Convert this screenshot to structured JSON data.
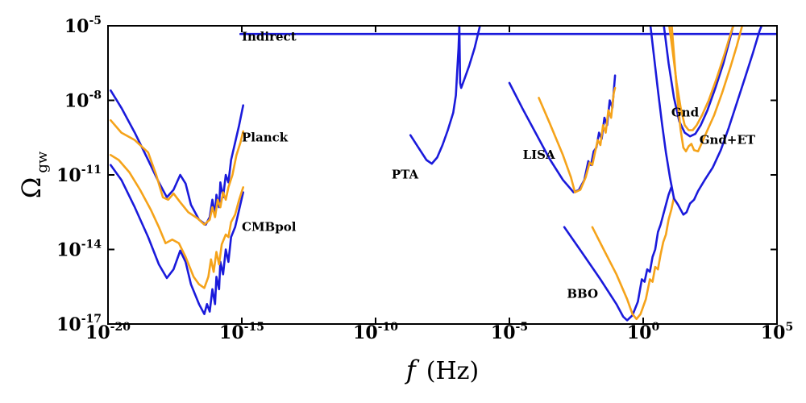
{
  "chart_data": {
    "type": "line",
    "xscale": "log",
    "yscale": "log",
    "xlim": [
      "1e-20",
      "1e5"
    ],
    "ylim": [
      "1e-17",
      "1e-5"
    ],
    "xlabel": {
      "main": "f",
      "unit": "(Hz)"
    },
    "ylabel": {
      "main": "Ω",
      "sub": "gw"
    },
    "x_ticks": [
      {
        "base": "10",
        "exp": "-20",
        "value": -20
      },
      {
        "base": "10",
        "exp": "-15",
        "value": -15
      },
      {
        "base": "10",
        "exp": "-10",
        "value": -10
      },
      {
        "base": "10",
        "exp": "-5",
        "value": -5
      },
      {
        "base": "10",
        "exp": "0",
        "value": 0
      },
      {
        "base": "10",
        "exp": "5",
        "value": 5
      }
    ],
    "y_ticks": [
      {
        "base": "10",
        "exp": "-17",
        "value": -17
      },
      {
        "base": "10",
        "exp": "-14",
        "value": -14
      },
      {
        "base": "10",
        "exp": "-11",
        "value": -11
      },
      {
        "base": "10",
        "exp": "-8",
        "value": -8
      },
      {
        "base": "10",
        "exp": "-5",
        "value": -5
      }
    ],
    "annotations": [
      {
        "text": "Indirect",
        "logx": -15,
        "logy": -5.6
      },
      {
        "text": "Planck",
        "logx": -15,
        "logy": -9.65
      },
      {
        "text": "CMBpol",
        "logx": -15,
        "logy": -13.25
      },
      {
        "text": "PTA",
        "logx": -9.4,
        "logy": -11.15
      },
      {
        "text": "LISA",
        "logx": -4.5,
        "logy": -10.35
      },
      {
        "text": "Gnd",
        "logx": 1.05,
        "logy": -8.65
      },
      {
        "text": "Gnd+ET",
        "logx": 2.1,
        "logy": -9.75
      },
      {
        "text": "BBO",
        "logx": -2.85,
        "logy": -15.95
      }
    ],
    "colors": {
      "blue": "#1a1adb",
      "orange": "#f5a31a"
    },
    "series": [
      {
        "color": "blue",
        "points": [
          [
            -15.05,
            -5.33
          ],
          [
            5,
            -5.33
          ]
        ]
      },
      {
        "color": "blue",
        "points": [
          [
            -19.9,
            -7.6
          ],
          [
            -19.5,
            -8.3
          ],
          [
            -19.0,
            -9.3
          ],
          [
            -18.5,
            -10.4
          ],
          [
            -18.1,
            -11.3
          ],
          [
            -17.8,
            -11.9
          ],
          [
            -17.55,
            -11.6
          ],
          [
            -17.3,
            -11.0
          ],
          [
            -17.1,
            -11.35
          ],
          [
            -16.9,
            -12.2
          ],
          [
            -16.6,
            -12.8
          ],
          [
            -16.35,
            -13.0
          ],
          [
            -16.2,
            -12.7
          ],
          [
            -16.1,
            -12.0
          ],
          [
            -16.0,
            -12.6
          ],
          [
            -15.95,
            -11.8
          ],
          [
            -15.85,
            -12.3
          ],
          [
            -15.8,
            -11.3
          ],
          [
            -15.7,
            -11.9
          ],
          [
            -15.6,
            -11.0
          ],
          [
            -15.5,
            -11.3
          ],
          [
            -15.4,
            -10.4
          ],
          [
            -15.25,
            -9.7
          ],
          [
            -15.1,
            -9.0
          ],
          [
            -14.95,
            -8.2
          ]
        ]
      },
      {
        "color": "blue",
        "points": [
          [
            -19.9,
            -10.6
          ],
          [
            -19.5,
            -11.2
          ],
          [
            -19.0,
            -12.3
          ],
          [
            -18.5,
            -13.5
          ],
          [
            -18.1,
            -14.6
          ],
          [
            -17.8,
            -15.15
          ],
          [
            -17.55,
            -14.8
          ],
          [
            -17.3,
            -14.05
          ],
          [
            -17.1,
            -14.5
          ],
          [
            -16.9,
            -15.4
          ],
          [
            -16.6,
            -16.2
          ],
          [
            -16.4,
            -16.6
          ],
          [
            -16.3,
            -16.2
          ],
          [
            -16.2,
            -16.5
          ],
          [
            -16.1,
            -15.6
          ],
          [
            -16.0,
            -16.2
          ],
          [
            -15.95,
            -15.1
          ],
          [
            -15.85,
            -15.6
          ],
          [
            -15.8,
            -14.5
          ],
          [
            -15.7,
            -15.0
          ],
          [
            -15.6,
            -14.0
          ],
          [
            -15.5,
            -14.5
          ],
          [
            -15.4,
            -13.5
          ],
          [
            -15.25,
            -13.1
          ],
          [
            -15.1,
            -12.4
          ],
          [
            -14.95,
            -11.7
          ]
        ]
      },
      {
        "color": "orange",
        "points": [
          [
            -19.9,
            -8.8
          ],
          [
            -19.5,
            -9.3
          ],
          [
            -19.0,
            -9.6
          ],
          [
            -18.5,
            -10.1
          ],
          [
            -18.2,
            -11.0
          ],
          [
            -17.95,
            -11.9
          ],
          [
            -17.75,
            -12.0
          ],
          [
            -17.55,
            -11.75
          ],
          [
            -17.3,
            -12.1
          ],
          [
            -17.0,
            -12.5
          ],
          [
            -16.65,
            -12.75
          ],
          [
            -16.4,
            -13.0
          ],
          [
            -16.2,
            -12.8
          ],
          [
            -16.1,
            -12.3
          ],
          [
            -16.0,
            -12.7
          ],
          [
            -15.9,
            -12.0
          ],
          [
            -15.8,
            -12.3
          ],
          [
            -15.7,
            -11.7
          ],
          [
            -15.6,
            -12.0
          ],
          [
            -15.5,
            -11.5
          ],
          [
            -15.35,
            -11.0
          ],
          [
            -15.2,
            -10.2
          ],
          [
            -15.05,
            -9.7
          ],
          [
            -14.95,
            -9.25
          ]
        ]
      },
      {
        "color": "orange",
        "points": [
          [
            -19.9,
            -10.2
          ],
          [
            -19.6,
            -10.4
          ],
          [
            -19.2,
            -10.9
          ],
          [
            -18.8,
            -11.6
          ],
          [
            -18.4,
            -12.4
          ],
          [
            -18.1,
            -13.1
          ],
          [
            -17.85,
            -13.75
          ],
          [
            -17.6,
            -13.6
          ],
          [
            -17.35,
            -13.75
          ],
          [
            -17.1,
            -14.3
          ],
          [
            -16.8,
            -15.1
          ],
          [
            -16.6,
            -15.4
          ],
          [
            -16.4,
            -15.55
          ],
          [
            -16.25,
            -15.1
          ],
          [
            -16.15,
            -14.4
          ],
          [
            -16.05,
            -14.9
          ],
          [
            -15.95,
            -14.1
          ],
          [
            -15.85,
            -14.6
          ],
          [
            -15.75,
            -13.8
          ],
          [
            -15.6,
            -13.4
          ],
          [
            -15.5,
            -13.5
          ],
          [
            -15.4,
            -12.9
          ],
          [
            -15.25,
            -12.6
          ],
          [
            -15.1,
            -12.0
          ],
          [
            -14.95,
            -11.5
          ]
        ]
      },
      {
        "color": "blue",
        "points": [
          [
            -8.7,
            -9.4
          ],
          [
            -8.4,
            -9.9
          ],
          [
            -8.1,
            -10.4
          ],
          [
            -7.9,
            -10.55
          ],
          [
            -7.7,
            -10.3
          ],
          [
            -7.5,
            -9.8
          ],
          [
            -7.3,
            -9.2
          ],
          [
            -7.1,
            -8.5
          ],
          [
            -7.0,
            -7.8
          ],
          [
            -6.95,
            -6.8
          ],
          [
            -6.9,
            -5.9
          ],
          [
            -6.87,
            -5.0
          ],
          [
            -6.84,
            -7.3
          ],
          [
            -6.8,
            -7.5
          ],
          [
            -6.7,
            -7.2
          ],
          [
            -6.5,
            -6.6
          ],
          [
            -6.3,
            -5.9
          ],
          [
            -6.1,
            -5.0
          ]
        ]
      },
      {
        "color": "blue",
        "points": [
          [
            -5.0,
            -7.3
          ],
          [
            -4.5,
            -8.35
          ],
          [
            -4.0,
            -9.35
          ],
          [
            -3.5,
            -10.35
          ],
          [
            -3.0,
            -11.2
          ],
          [
            -2.6,
            -11.7
          ],
          [
            -2.4,
            -11.6
          ],
          [
            -2.2,
            -11.2
          ],
          [
            -2.05,
            -10.45
          ],
          [
            -1.95,
            -10.6
          ],
          [
            -1.85,
            -10.05
          ],
          [
            -1.75,
            -9.9
          ],
          [
            -1.65,
            -9.3
          ],
          [
            -1.55,
            -9.55
          ],
          [
            -1.45,
            -8.7
          ],
          [
            -1.35,
            -9.0
          ],
          [
            -1.25,
            -8.0
          ],
          [
            -1.15,
            -8.3
          ],
          [
            -1.05,
            -7.0
          ]
        ]
      },
      {
        "color": "orange",
        "points": [
          [
            -3.9,
            -7.9
          ],
          [
            -3.5,
            -8.9
          ],
          [
            -3.0,
            -10.2
          ],
          [
            -2.7,
            -11.1
          ],
          [
            -2.55,
            -11.7
          ],
          [
            -2.35,
            -11.6
          ],
          [
            -2.15,
            -11.1
          ],
          [
            -2.0,
            -10.5
          ],
          [
            -1.9,
            -10.6
          ],
          [
            -1.8,
            -10.1
          ],
          [
            -1.7,
            -9.6
          ],
          [
            -1.6,
            -9.8
          ],
          [
            -1.5,
            -9.0
          ],
          [
            -1.4,
            -9.3
          ],
          [
            -1.3,
            -8.4
          ],
          [
            -1.2,
            -8.7
          ],
          [
            -1.1,
            -7.7
          ],
          [
            -1.05,
            -7.5
          ]
        ]
      },
      {
        "color": "blue",
        "points": [
          [
            -2.95,
            -13.1
          ],
          [
            -2.3,
            -14.1
          ],
          [
            -1.6,
            -15.2
          ],
          [
            -1.0,
            -16.2
          ],
          [
            -0.75,
            -16.7
          ],
          [
            -0.6,
            -16.85
          ],
          [
            -0.4,
            -16.65
          ],
          [
            -0.2,
            -16.1
          ],
          [
            -0.05,
            -15.2
          ],
          [
            0.05,
            -15.3
          ],
          [
            0.15,
            -14.8
          ],
          [
            0.25,
            -14.9
          ],
          [
            0.35,
            -14.3
          ],
          [
            0.45,
            -14.0
          ],
          [
            0.55,
            -13.3
          ],
          [
            0.65,
            -13.0
          ],
          [
            0.75,
            -12.6
          ],
          [
            0.85,
            -12.2
          ],
          [
            0.95,
            -11.8
          ],
          [
            1.05,
            -11.5
          ]
        ]
      },
      {
        "color": "orange",
        "points": [
          [
            -1.9,
            -13.1
          ],
          [
            -1.5,
            -13.95
          ],
          [
            -1.0,
            -15.0
          ],
          [
            -0.6,
            -16.0
          ],
          [
            -0.4,
            -16.6
          ],
          [
            -0.25,
            -16.8
          ],
          [
            -0.1,
            -16.6
          ],
          [
            0.1,
            -16.0
          ],
          [
            0.25,
            -15.2
          ],
          [
            0.35,
            -15.3
          ],
          [
            0.45,
            -14.7
          ],
          [
            0.55,
            -14.8
          ],
          [
            0.65,
            -14.2
          ],
          [
            0.75,
            -13.7
          ],
          [
            0.85,
            -13.4
          ],
          [
            0.95,
            -12.8
          ],
          [
            1.05,
            -12.4
          ],
          [
            1.15,
            -11.9
          ]
        ]
      },
      {
        "color": "blue",
        "points": [
          [
            0.25,
            -4.8
          ],
          [
            0.4,
            -6.2
          ],
          [
            0.55,
            -7.6
          ],
          [
            0.7,
            -8.9
          ],
          [
            0.85,
            -10.1
          ],
          [
            1.0,
            -11.1
          ],
          [
            1.15,
            -11.95
          ],
          [
            1.3,
            -12.2
          ],
          [
            1.4,
            -12.4
          ],
          [
            1.5,
            -12.6
          ],
          [
            1.62,
            -12.5
          ],
          [
            1.75,
            -12.15
          ],
          [
            1.9,
            -12.0
          ],
          [
            2.05,
            -11.65
          ],
          [
            2.3,
            -11.2
          ],
          [
            2.6,
            -10.7
          ],
          [
            2.9,
            -10.0
          ],
          [
            3.2,
            -9.1
          ],
          [
            3.5,
            -8.1
          ],
          [
            3.8,
            -7.1
          ],
          [
            4.1,
            -6.1
          ],
          [
            4.35,
            -5.2
          ],
          [
            4.5,
            -4.8
          ]
        ]
      },
      {
        "color": "blue",
        "points": [
          [
            0.75,
            -4.8
          ],
          [
            0.95,
            -6.5
          ],
          [
            1.15,
            -7.9
          ],
          [
            1.35,
            -8.85
          ],
          [
            1.55,
            -9.3
          ],
          [
            1.75,
            -9.45
          ],
          [
            1.95,
            -9.35
          ],
          [
            2.15,
            -9.0
          ],
          [
            2.4,
            -8.4
          ],
          [
            2.7,
            -7.5
          ],
          [
            3.0,
            -6.5
          ],
          [
            3.25,
            -5.5
          ],
          [
            3.4,
            -4.8
          ]
        ]
      },
      {
        "color": "orange",
        "points": [
          [
            0.95,
            -4.8
          ],
          [
            1.1,
            -6.0
          ],
          [
            1.25,
            -7.3
          ],
          [
            1.4,
            -8.3
          ],
          [
            1.55,
            -9.0
          ],
          [
            1.7,
            -9.2
          ],
          [
            1.85,
            -9.2
          ],
          [
            2.0,
            -9.0
          ],
          [
            2.2,
            -8.6
          ],
          [
            2.45,
            -8.0
          ],
          [
            2.75,
            -7.1
          ],
          [
            3.05,
            -6.1
          ],
          [
            3.3,
            -5.2
          ],
          [
            3.45,
            -4.8
          ]
        ]
      },
      {
        "color": "orange",
        "points": [
          [
            1.05,
            -4.8
          ],
          [
            1.2,
            -6.8
          ],
          [
            1.3,
            -8.2
          ],
          [
            1.4,
            -9.2
          ],
          [
            1.5,
            -9.9
          ],
          [
            1.6,
            -10.05
          ],
          [
            1.7,
            -9.85
          ],
          [
            1.8,
            -9.75
          ],
          [
            1.9,
            -10.0
          ],
          [
            2.05,
            -10.05
          ],
          [
            2.2,
            -9.7
          ],
          [
            2.4,
            -9.2
          ],
          [
            2.65,
            -8.6
          ],
          [
            2.95,
            -7.7
          ],
          [
            3.25,
            -6.7
          ],
          [
            3.5,
            -5.8
          ],
          [
            3.7,
            -5.0
          ],
          [
            3.75,
            -4.8
          ]
        ]
      }
    ]
  }
}
